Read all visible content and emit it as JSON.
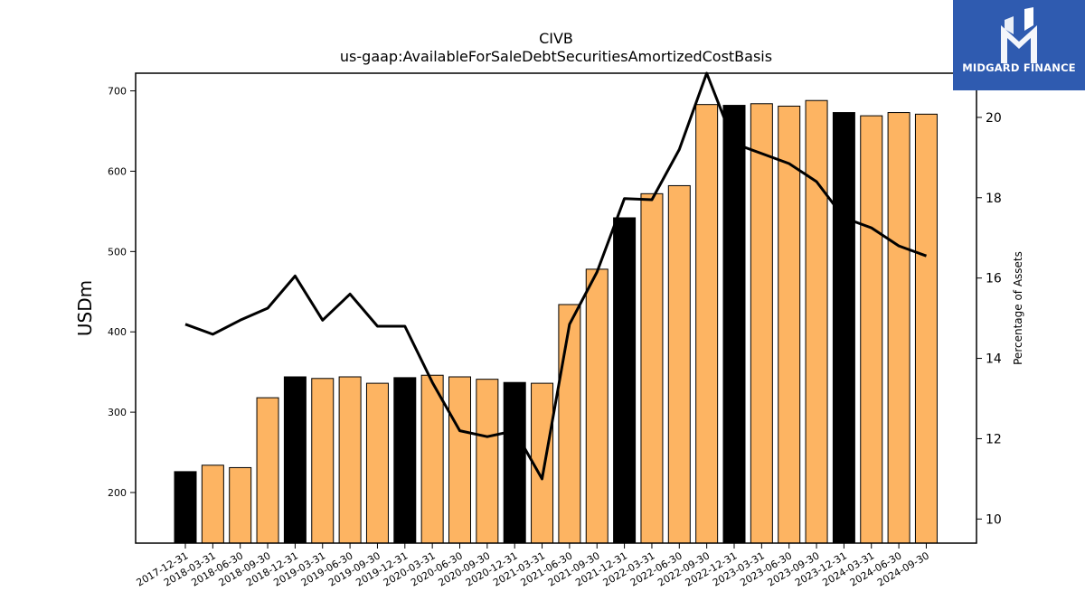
{
  "logo": {
    "text": "MIDGARD FINANCE",
    "bg_color": "#2f5bb0"
  },
  "chart_data": {
    "type": "bar",
    "title": "CIVB",
    "subtitle": "us-gaap:AvailableForSaleDebtSecuritiesAmortizedCostBasis",
    "ylabel": "USDm",
    "y2label": "Percentage of Assets",
    "ylim": [
      137,
      722
    ],
    "y2lim": [
      9.4,
      21.1
    ],
    "yticks": [
      200,
      300,
      400,
      500,
      600,
      700
    ],
    "y2ticks": [
      10,
      12,
      14,
      16,
      18,
      20
    ],
    "bar_colors": {
      "quarter": "#fdb462",
      "year_end": "#000000"
    },
    "line_color": "#000000",
    "categories": [
      "2017-12-31",
      "2018-03-31",
      "2018-06-30",
      "2018-09-30",
      "2018-12-31",
      "2019-03-31",
      "2019-06-30",
      "2019-09-30",
      "2019-12-31",
      "2020-03-31",
      "2020-06-30",
      "2020-09-30",
      "2020-12-31",
      "2021-03-31",
      "2021-06-30",
      "2021-09-30",
      "2021-12-31",
      "2022-03-31",
      "2022-06-30",
      "2022-09-30",
      "2022-12-31",
      "2023-03-31",
      "2023-06-30",
      "2023-09-30",
      "2023-12-31",
      "2024-03-31",
      "2024-06-30",
      "2024-09-30"
    ],
    "series": [
      {
        "kind": "bar",
        "values": [
          226,
          234,
          231,
          318,
          344,
          342,
          344,
          336,
          343,
          346,
          344,
          341,
          337,
          336,
          434,
          478,
          542,
          572,
          582,
          683,
          682,
          684,
          681,
          688,
          673,
          669,
          673,
          671
        ],
        "year_end": [
          true,
          false,
          false,
          false,
          true,
          false,
          false,
          false,
          true,
          false,
          false,
          false,
          true,
          false,
          false,
          false,
          true,
          false,
          false,
          false,
          true,
          false,
          false,
          false,
          true,
          false,
          false,
          false
        ]
      },
      {
        "kind": "line",
        "axis": "right",
        "values": [
          14.85,
          14.6,
          14.95,
          15.25,
          16.05,
          14.95,
          15.6,
          14.8,
          14.8,
          13.4,
          12.2,
          12.05,
          12.2,
          11.0,
          14.85,
          16.15,
          17.98,
          17.95,
          19.2,
          21.1,
          19.35,
          19.1,
          18.85,
          18.4,
          17.5,
          17.25,
          16.8,
          16.55
        ]
      }
    ]
  }
}
